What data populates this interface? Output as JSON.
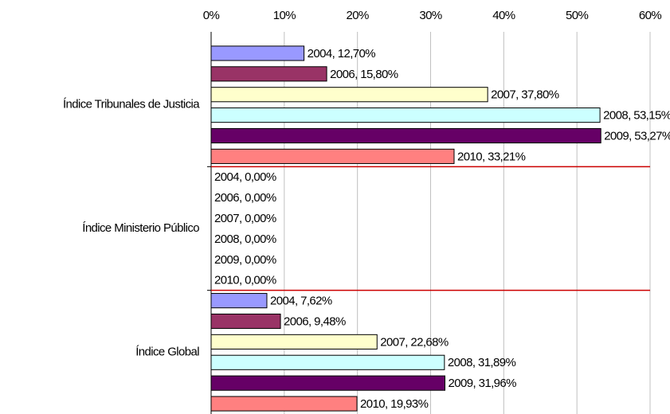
{
  "chart_data": {
    "type": "bar",
    "orientation": "horizontal",
    "categories": [
      "Índice Tribunales de Justicia",
      "Índice Ministerio Público",
      "Índice Global"
    ],
    "series": [
      {
        "color": "#9999ff",
        "values": [
          12.7,
          0.0,
          7.62
        ],
        "value_labels": [
          "2004, 12,70%",
          "2004, 0,00%",
          "2004, 7,62%"
        ]
      },
      {
        "color": "#993366",
        "values": [
          15.8,
          0.0,
          9.48
        ],
        "value_labels": [
          "2006, 15,80%",
          "2006, 0,00%",
          "2006, 9,48%"
        ]
      },
      {
        "color": "#ffffcc",
        "values": [
          37.8,
          0.0,
          22.68
        ],
        "value_labels": [
          "2007, 37,80%",
          "2007, 0,00%",
          "2007, 22,68%"
        ]
      },
      {
        "color": "#ccffff",
        "values": [
          53.15,
          0.0,
          31.89
        ],
        "value_labels": [
          "2008, 53,15%",
          "2008, 0,00%",
          "2008, 31,89%"
        ]
      },
      {
        "color": "#660066",
        "values": [
          53.27,
          0.0,
          31.96
        ],
        "value_labels": [
          "2009, 53,27%",
          "2009, 0,00%",
          "2009, 31,96%"
        ]
      },
      {
        "color": "#ff8080",
        "values": [
          33.21,
          0.0,
          19.93
        ],
        "value_labels": [
          "2010, 33,21%",
          "2010, 0,00%",
          "2010, 19,93%"
        ]
      }
    ],
    "xlim": [
      0,
      60
    ],
    "xticks": [
      {
        "value": 0,
        "label": "0%"
      },
      {
        "value": 10,
        "label": "10%"
      },
      {
        "value": 20,
        "label": "20%"
      },
      {
        "value": 30,
        "label": "30%"
      },
      {
        "value": 40,
        "label": "40%"
      },
      {
        "value": 50,
        "label": "50%"
      },
      {
        "value": 60,
        "label": "60%"
      }
    ],
    "grid": true
  }
}
